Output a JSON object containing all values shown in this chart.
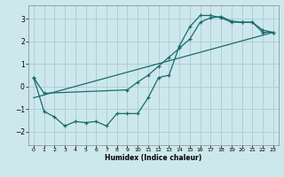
{
  "xlabel": "Humidex (Indice chaleur)",
  "background_color": "#cce8ed",
  "grid_color": "#b0cfd4",
  "line_color": "#1a6b6b",
  "xlim": [
    -0.5,
    23.5
  ],
  "ylim": [
    -2.6,
    3.6
  ],
  "xticks": [
    0,
    1,
    2,
    3,
    4,
    5,
    6,
    7,
    8,
    9,
    10,
    11,
    12,
    13,
    14,
    15,
    16,
    17,
    18,
    19,
    20,
    21,
    22,
    23
  ],
  "yticks": [
    -2,
    -1,
    0,
    1,
    2,
    3
  ],
  "curve1_x": [
    0,
    1,
    2,
    3,
    4,
    5,
    6,
    7,
    8,
    9,
    10,
    11,
    12,
    13,
    14,
    15,
    16,
    17,
    18,
    19,
    20,
    21,
    22,
    23
  ],
  "curve1_y": [
    0.4,
    -1.1,
    -1.35,
    -1.75,
    -1.55,
    -1.6,
    -1.55,
    -1.75,
    -1.2,
    -1.2,
    -1.2,
    -0.5,
    0.4,
    0.5,
    1.8,
    2.65,
    3.15,
    3.15,
    3.05,
    2.85,
    2.85,
    2.85,
    2.4,
    2.4
  ],
  "curve2_x": [
    0,
    1,
    9,
    10,
    11,
    12,
    13,
    14,
    15,
    16,
    17,
    18,
    19,
    20,
    21,
    22,
    23
  ],
  "curve2_y": [
    0.4,
    -0.3,
    -0.15,
    0.2,
    0.5,
    0.9,
    1.3,
    1.7,
    2.1,
    2.85,
    3.05,
    3.1,
    2.9,
    2.85,
    2.85,
    2.5,
    2.4
  ],
  "line_x": [
    0,
    23
  ],
  "line_y": [
    -0.5,
    2.4
  ],
  "marker": "+"
}
